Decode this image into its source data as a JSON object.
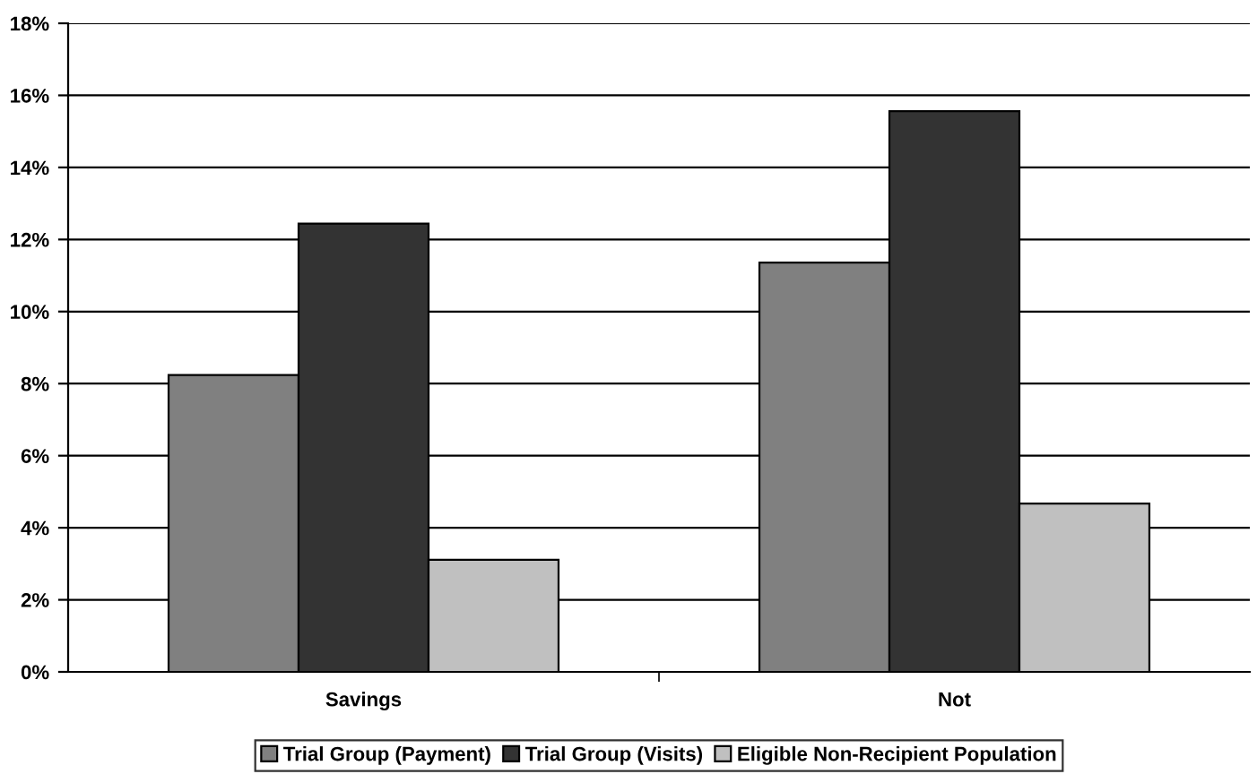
{
  "chart_data": {
    "type": "bar",
    "categories": [
      "Savings",
      "Not"
    ],
    "series": [
      {
        "name": "Trial Group (Payment)",
        "color": "#808080",
        "values": [
          8.24,
          11.36
        ]
      },
      {
        "name": "Trial Group (Visits)",
        "color": "#333333",
        "values": [
          12.44,
          15.56
        ]
      },
      {
        "name": "Eligible Non-Recipient Population",
        "color": "#c0c0c0",
        "values": [
          3.11,
          4.67
        ]
      }
    ],
    "ylim": [
      0,
      18
    ],
    "yticks": [
      {
        "value": 0,
        "label": "0%"
      },
      {
        "value": 2,
        "label": "2%"
      },
      {
        "value": 4,
        "label": "4%"
      },
      {
        "value": 6,
        "label": "6%"
      },
      {
        "value": 8,
        "label": "8%"
      },
      {
        "value": 10,
        "label": "10%"
      },
      {
        "value": 12,
        "label": "12%"
      },
      {
        "value": 14,
        "label": "14%"
      },
      {
        "value": 16,
        "label": "16%"
      },
      {
        "value": 18,
        "label": "18%"
      }
    ],
    "grid": "y",
    "legend": "bottom"
  }
}
